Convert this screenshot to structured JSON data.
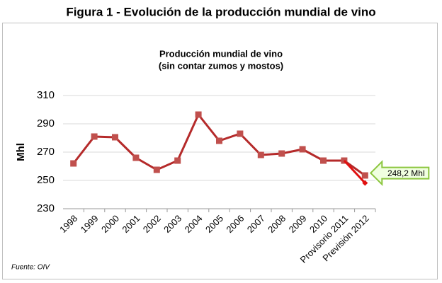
{
  "figure_title": "Figura 1 - Evolución de la producción mundial de vino",
  "source": "Fuente: OIV",
  "chart_data": {
    "type": "line",
    "title": "Producción mundial de vino",
    "subtitle": "(sin contar zumos y mostos)",
    "y_label": "Mhl",
    "categories": [
      "1998",
      "1999",
      "2000",
      "2001",
      "2002",
      "2003",
      "2004",
      "2005",
      "2006",
      "2007",
      "2008",
      "2009",
      "2010",
      "Provisorio 2011",
      "Previsión 2012"
    ],
    "series": [
      {
        "color": "#c0504d",
        "line_color": "#b52a2a",
        "marker": "square",
        "values": [
          262,
          281,
          280.5,
          266,
          257.5,
          264,
          296.5,
          278,
          283,
          268,
          269,
          272,
          264,
          264,
          253.5
        ]
      },
      {
        "color": "#e01010",
        "line_color": "#e01010",
        "marker": "diamond",
        "values": [
          null,
          null,
          null,
          null,
          null,
          null,
          null,
          null,
          null,
          null,
          null,
          null,
          null,
          264,
          248.2
        ],
        "value_labels": [
          null,
          null,
          null,
          null,
          null,
          null,
          null,
          null,
          null,
          null,
          null,
          null,
          null,
          null,
          "248,2 Mhl"
        ]
      }
    ],
    "ylim": [
      230,
      310
    ],
    "yticks": [
      230,
      250,
      270,
      290,
      310
    ],
    "grid": true
  }
}
